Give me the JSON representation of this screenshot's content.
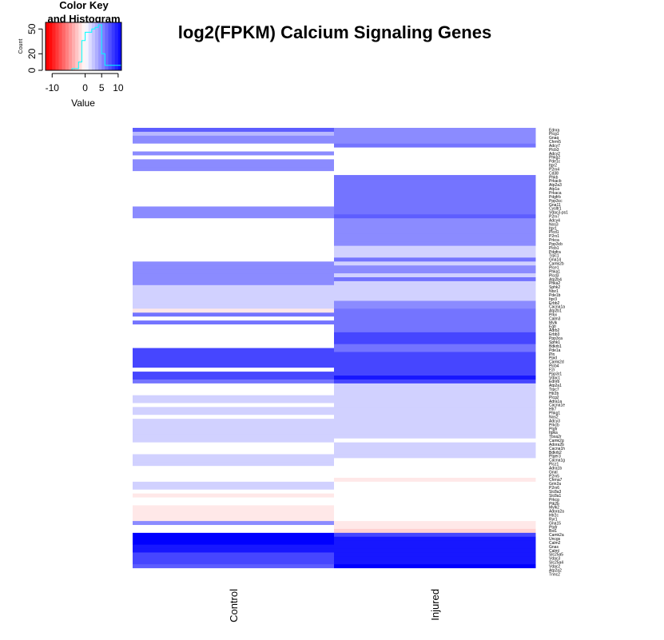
{
  "chart_data": {
    "type": "heatmap",
    "title": "log2(FPKM) Calcium Signaling Genes",
    "columns": [
      "Control",
      "Injured"
    ],
    "rows": [
      "Ednra",
      "Plcg1",
      "Gnaq",
      "Chrm5",
      "Adcy7",
      "Plcb3",
      "Adcy2",
      "Phkg2",
      "Pde1c",
      "Itpr2",
      "P2rx4",
      "Cd38",
      "Phkb",
      "Prkacb",
      "Atp2a3",
      "Atp1a",
      "Prkaca",
      "Pdgfrb",
      "Ppp3cc",
      "Gna11",
      "Cysltr1",
      "Vdac3-ps1",
      "P2rx7",
      "Adcy4",
      "Nos3",
      "Itpr1",
      "Plcd1",
      "P2rx1",
      "Prkca",
      "Ppp3cb",
      "Plcb1",
      "Pdgfra",
      "Trpc1",
      "Gna14",
      "Camk2b",
      "Plce1",
      "Phka1",
      "Plcd3",
      "Atp2b4",
      "Phka2",
      "Sphk2",
      "Ntsr1",
      "Pde1b",
      "Itpr3",
      "Erbb2",
      "Cacna1a",
      "Atp2b1",
      "Prkx",
      "Calm3",
      "Mylk",
      "Egfr",
      "Adrb2",
      "Erbb3",
      "Ppp3ca",
      "Sphk1",
      "Bdkrb1",
      "Pde1a",
      "Pln",
      "Ppid",
      "Camk2d",
      "Plcb4",
      "F2r",
      "Ppp3r1",
      "Vdac1",
      "Ednrb",
      "Atp2a1",
      "Trpc7",
      "Htr2b",
      "Plcg2",
      "Adra1a",
      "Cacna1e",
      "Htr7",
      "Phkg1",
      "Nos2",
      "Adcy3",
      "Prkcb",
      "Ptgfr",
      "Itpka",
      "Tbxa2r",
      "Camk2g",
      "Adora2b",
      "Cacna1h",
      "Bdkrb2",
      "Ptger3",
      "Cacna1g",
      "Plcz1",
      "Adra1b",
      "Gnal",
      "P2rx5",
      "Chrna7",
      "Grin2a",
      "P2rx6",
      "Slc8a3",
      "Slc8a1",
      "Prkcg",
      "Ptk2b",
      "Mylk2",
      "Adora2a",
      "Htr2c",
      "Ryr1",
      "Gna15",
      "Ptafr",
      "Bst1",
      "Camk2a",
      "Uncgs",
      "Calm2",
      "Gnas",
      "Calml",
      "Slc25a5",
      "Vdac3",
      "Slc25a4",
      "Vdac2",
      "Atp2a2",
      "Tnnc2"
    ],
    "key": {
      "title": "Color Key and Histogram",
      "xlabel": "Value",
      "ylabel": "Count",
      "x_ticks": [
        -10,
        0,
        5,
        10
      ],
      "y_ticks": [
        0,
        20,
        50
      ],
      "breaks": [
        -12,
        -11,
        -10,
        -9,
        -8,
        -7,
        -6,
        -5,
        -4,
        -3,
        -2,
        -1,
        0,
        1,
        2,
        3,
        4,
        5,
        6,
        7,
        8,
        9,
        10,
        11
      ],
      "histogram": [
        0,
        0,
        0,
        0,
        0,
        0,
        0,
        0,
        2,
        2,
        10,
        36,
        46,
        46,
        50,
        52,
        55,
        20,
        6,
        6,
        6,
        6,
        6
      ],
      "palette": {
        "low": "#ff0000",
        "mid": "#ffffff",
        "high": "#0000ff"
      }
    },
    "values": {
      "Control": [
        [
          0,
          7
        ],
        [
          1,
          3
        ],
        [
          2,
          5
        ],
        [
          3,
          5
        ],
        [
          6,
          5
        ],
        [
          8,
          5
        ],
        [
          9,
          5
        ],
        [
          10,
          5
        ],
        [
          20,
          5
        ],
        [
          21,
          5
        ],
        [
          22,
          5
        ],
        [
          34,
          5
        ],
        [
          35,
          5
        ],
        [
          36,
          5
        ],
        [
          37,
          5
        ],
        [
          38,
          5
        ],
        [
          39,
          5
        ],
        [
          40,
          2
        ],
        [
          41,
          2
        ],
        [
          42,
          2
        ],
        [
          43,
          2
        ],
        [
          44,
          2
        ],
        [
          45,
          2
        ],
        [
          46,
          -1
        ],
        [
          47,
          6
        ],
        [
          49,
          6
        ],
        [
          56,
          8
        ],
        [
          57,
          8
        ],
        [
          58,
          8
        ],
        [
          59,
          8
        ],
        [
          60,
          8
        ],
        [
          62,
          8
        ],
        [
          63,
          8
        ],
        [
          64,
          6
        ],
        [
          65,
          0
        ],
        [
          66,
          0
        ],
        [
          67,
          0
        ],
        [
          68,
          2
        ],
        [
          69,
          2
        ],
        [
          70,
          0
        ],
        [
          71,
          2
        ],
        [
          72,
          2
        ],
        [
          73,
          0
        ],
        [
          74,
          2
        ],
        [
          75,
          2
        ],
        [
          76,
          2
        ],
        [
          77,
          2
        ],
        [
          78,
          2
        ],
        [
          79,
          2
        ],
        [
          80,
          0
        ],
        [
          81,
          0
        ],
        [
          82,
          0
        ],
        [
          83,
          2
        ],
        [
          84,
          2
        ],
        [
          85,
          2
        ],
        [
          86,
          0
        ],
        [
          87,
          0
        ],
        [
          88,
          0
        ],
        [
          89,
          0
        ],
        [
          90,
          2
        ],
        [
          91,
          2
        ],
        [
          92,
          0
        ],
        [
          93,
          -1
        ],
        [
          94,
          0
        ],
        [
          95,
          0
        ],
        [
          96,
          -1
        ],
        [
          97,
          -1
        ],
        [
          98,
          -1
        ],
        [
          99,
          -1
        ],
        [
          100,
          5
        ],
        [
          101,
          0
        ],
        [
          102,
          0
        ],
        [
          103,
          11
        ],
        [
          104,
          11
        ],
        [
          105,
          11
        ],
        [
          106,
          10
        ],
        [
          107,
          10
        ],
        [
          108,
          8
        ],
        [
          109,
          8
        ],
        [
          110,
          8
        ],
        [
          111,
          7
        ]
      ],
      "Injured": [
        [
          0,
          5
        ],
        [
          1,
          5
        ],
        [
          2,
          5
        ],
        [
          3,
          5
        ],
        [
          4,
          6
        ],
        [
          12,
          6
        ],
        [
          13,
          6
        ],
        [
          14,
          6
        ],
        [
          15,
          6
        ],
        [
          16,
          6
        ],
        [
          17,
          6
        ],
        [
          18,
          6
        ],
        [
          19,
          6
        ],
        [
          20,
          6
        ],
        [
          21,
          6
        ],
        [
          22,
          7
        ],
        [
          23,
          5
        ],
        [
          24,
          5
        ],
        [
          25,
          5
        ],
        [
          26,
          5
        ],
        [
          27,
          5
        ],
        [
          28,
          5
        ],
        [
          29,
          5
        ],
        [
          30,
          2
        ],
        [
          31,
          2
        ],
        [
          32,
          2
        ],
        [
          33,
          6
        ],
        [
          34,
          2
        ],
        [
          35,
          5
        ],
        [
          36,
          5
        ],
        [
          37,
          2
        ],
        [
          38,
          6
        ],
        [
          39,
          2
        ],
        [
          40,
          2
        ],
        [
          41,
          2
        ],
        [
          42,
          2
        ],
        [
          43,
          2
        ],
        [
          44,
          5
        ],
        [
          45,
          5
        ],
        [
          46,
          6
        ],
        [
          47,
          6
        ],
        [
          48,
          6
        ],
        [
          49,
          6
        ],
        [
          50,
          6
        ],
        [
          51,
          6
        ],
        [
          52,
          8
        ],
        [
          53,
          8
        ],
        [
          54,
          8
        ],
        [
          55,
          6
        ],
        [
          56,
          6
        ],
        [
          57,
          8
        ],
        [
          58,
          8
        ],
        [
          59,
          8
        ],
        [
          60,
          8
        ],
        [
          61,
          8
        ],
        [
          62,
          8
        ],
        [
          63,
          10
        ],
        [
          64,
          8
        ],
        [
          65,
          2
        ],
        [
          66,
          2
        ],
        [
          67,
          2
        ],
        [
          68,
          2
        ],
        [
          69,
          2
        ],
        [
          70,
          2
        ],
        [
          71,
          2
        ],
        [
          72,
          2
        ],
        [
          73,
          2
        ],
        [
          74,
          2
        ],
        [
          75,
          2
        ],
        [
          76,
          2
        ],
        [
          77,
          2
        ],
        [
          78,
          2
        ],
        [
          79,
          0
        ],
        [
          80,
          2
        ],
        [
          81,
          2
        ],
        [
          82,
          2
        ],
        [
          83,
          2
        ],
        [
          84,
          0
        ],
        [
          85,
          0
        ],
        [
          86,
          0
        ],
        [
          87,
          0
        ],
        [
          88,
          0
        ],
        [
          89,
          -1
        ],
        [
          90,
          0
        ],
        [
          91,
          0
        ],
        [
          92,
          0
        ],
        [
          93,
          0
        ],
        [
          94,
          0
        ],
        [
          95,
          0
        ],
        [
          96,
          0
        ],
        [
          97,
          0
        ],
        [
          98,
          0
        ],
        [
          99,
          0
        ],
        [
          100,
          -1
        ],
        [
          101,
          -1
        ],
        [
          102,
          -2
        ],
        [
          103,
          8
        ],
        [
          104,
          10
        ],
        [
          105,
          10
        ],
        [
          106,
          10
        ],
        [
          107,
          10
        ],
        [
          108,
          10
        ],
        [
          109,
          10
        ],
        [
          110,
          10
        ],
        [
          111,
          11
        ]
      ]
    }
  }
}
